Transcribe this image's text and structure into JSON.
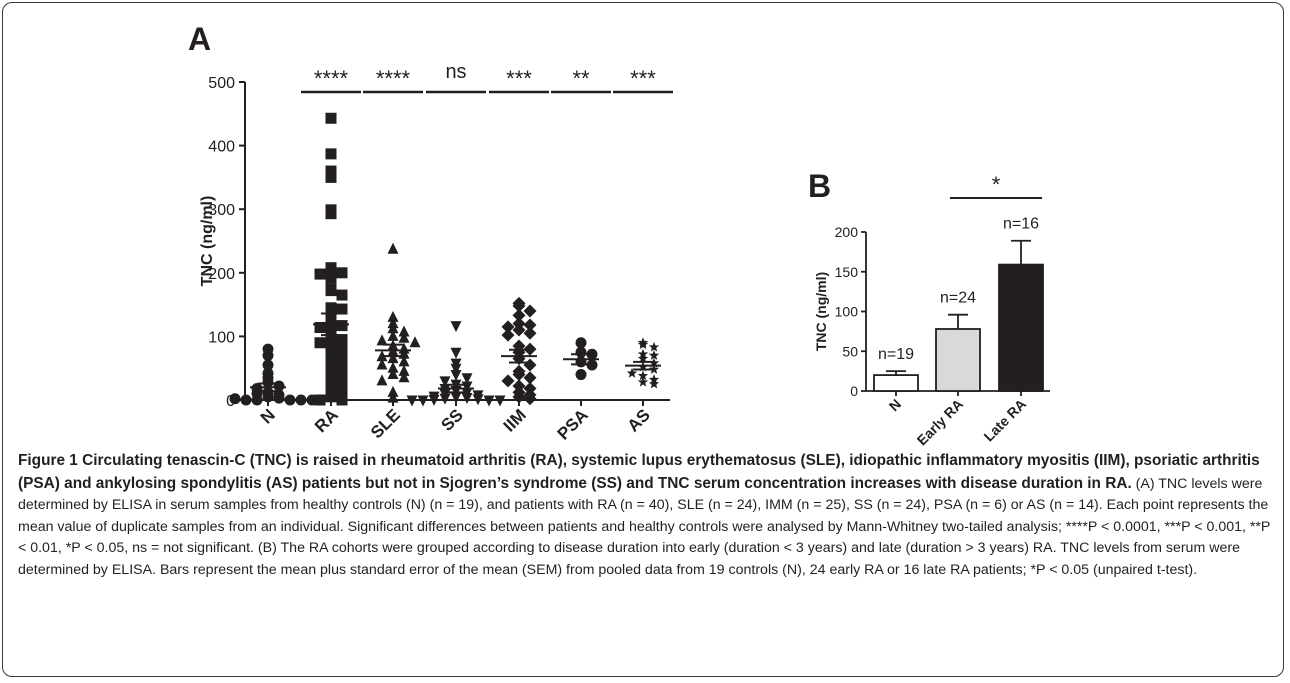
{
  "chart_data": [
    {
      "panel": "A",
      "type": "scatter",
      "ylabel": "TNC (ng/ml)",
      "ylim": [
        0,
        500
      ],
      "yticks": [
        "0",
        "100",
        "200",
        "300",
        "400",
        "500"
      ],
      "categories": [
        "N",
        "RA",
        "SLE",
        "SS",
        "IIM",
        "PSA",
        "AS"
      ],
      "markers": [
        "circle",
        "square",
        "triangle",
        "triangle-down",
        "diamond",
        "circle",
        "star"
      ],
      "groups": [
        {
          "label": "N",
          "mean": 20,
          "sem": 6,
          "values": [
            80,
            70,
            55,
            42,
            35,
            28,
            22,
            18,
            12,
            8,
            5,
            3,
            0,
            0,
            0,
            0,
            2,
            0,
            10
          ]
        },
        {
          "label": "RA",
          "mean": 119,
          "sem": 17,
          "values": [
            443,
            387,
            360,
            350,
            299,
            293,
            208,
            200,
            198,
            192,
            175,
            172,
            165,
            145,
            143,
            132,
            122,
            117,
            114,
            108,
            100,
            95,
            90,
            85,
            80,
            72,
            67,
            60,
            55,
            50,
            45,
            40,
            30,
            25,
            20,
            15,
            10,
            5,
            0,
            0
          ]
        },
        {
          "label": "SLE",
          "mean": 78,
          "sem": 9,
          "values": [
            237,
            130,
            120,
            112,
            107,
            100,
            97,
            93,
            90,
            85,
            80,
            76,
            72,
            68,
            65,
            60,
            55,
            50,
            45,
            40,
            35,
            30,
            12,
            3
          ]
        },
        {
          "label": "SS",
          "mean": 18,
          "sem": 6,
          "values": [
            117,
            75,
            58,
            50,
            40,
            35,
            30,
            25,
            22,
            18,
            15,
            12,
            10,
            8,
            6,
            5,
            4,
            3,
            2,
            1,
            0,
            0,
            0,
            0
          ]
        },
        {
          "label": "IIM",
          "mean": 69,
          "sem": 10,
          "values": [
            152,
            148,
            140,
            133,
            120,
            118,
            115,
            110,
            105,
            102,
            85,
            80,
            75,
            65,
            55,
            45,
            40,
            35,
            30,
            22,
            18,
            12,
            8,
            5,
            2
          ]
        },
        {
          "label": "PSA",
          "mean": 64,
          "sem": 8,
          "values": [
            90,
            75,
            72,
            60,
            55,
            40
          ]
        },
        {
          "label": "AS",
          "mean": 54,
          "sem": 6,
          "values": [
            90,
            87,
            83,
            72,
            70,
            65,
            58,
            52,
            48,
            42,
            38,
            32,
            28,
            25
          ]
        }
      ],
      "significance": [
        "****",
        "****",
        "ns",
        "***",
        "**",
        "***"
      ]
    },
    {
      "panel": "B",
      "type": "bar",
      "ylabel": "TNC (ng/ml)",
      "ylim": [
        0,
        200
      ],
      "yticks": [
        "0",
        "50",
        "100",
        "150",
        "200"
      ],
      "categories": [
        "N",
        "Early RA",
        "Late RA"
      ],
      "values": [
        20,
        78,
        159
      ],
      "errors": [
        5,
        18,
        30
      ],
      "n_labels": [
        "n=19",
        "n=24",
        "n=16"
      ],
      "bar_colors": [
        "#ffffff",
        "#d9d9d9",
        "#231f20"
      ],
      "significance": "*"
    }
  ],
  "caption": {
    "title": "Figure 1 Circulating tenascin-C (TNC) is raised in rheumatoid arthritis (RA), systemic lupus erythematosus (SLE), idiopathic inflammatory myositis (IIM), psoriatic arthritis (PSA) and ankylosing spondylitis (AS) patients but not in Sjogren’s syndrome (SS) and TNC serum concentration increases with disease duration in RA",
    "part_a": "(A) TNC levels were determined by ELISA in serum samples from healthy controls (N) (n = 19), and patients with RA (n = 40), SLE (n = 24), IMM (n = 25), SS (n = 24), PSA (n = 6) or AS (n = 14). Each point represents the mean value of duplicate samples from an individual. Significant differences between patients and healthy controls were analysed by Mann-Whitney two-tailed analysis; ****P < 0.0001, ***P < 0.001, **P < 0.01, *P < 0.05, ns = not significant.",
    "part_b": "(B) The RA cohorts were grouped according to disease duration into early (duration < 3 years) and late (duration > 3 years) RA. TNC levels from serum were determined by ELISA. Bars represent the mean plus standard error of the mean (SEM) from pooled data from 19 controls (N), 24 early RA or 16 late RA patients; *P < 0.05 (unpaired t-test)."
  },
  "colors": {
    "ink": "#231f20",
    "border": "#3a3a3a"
  }
}
